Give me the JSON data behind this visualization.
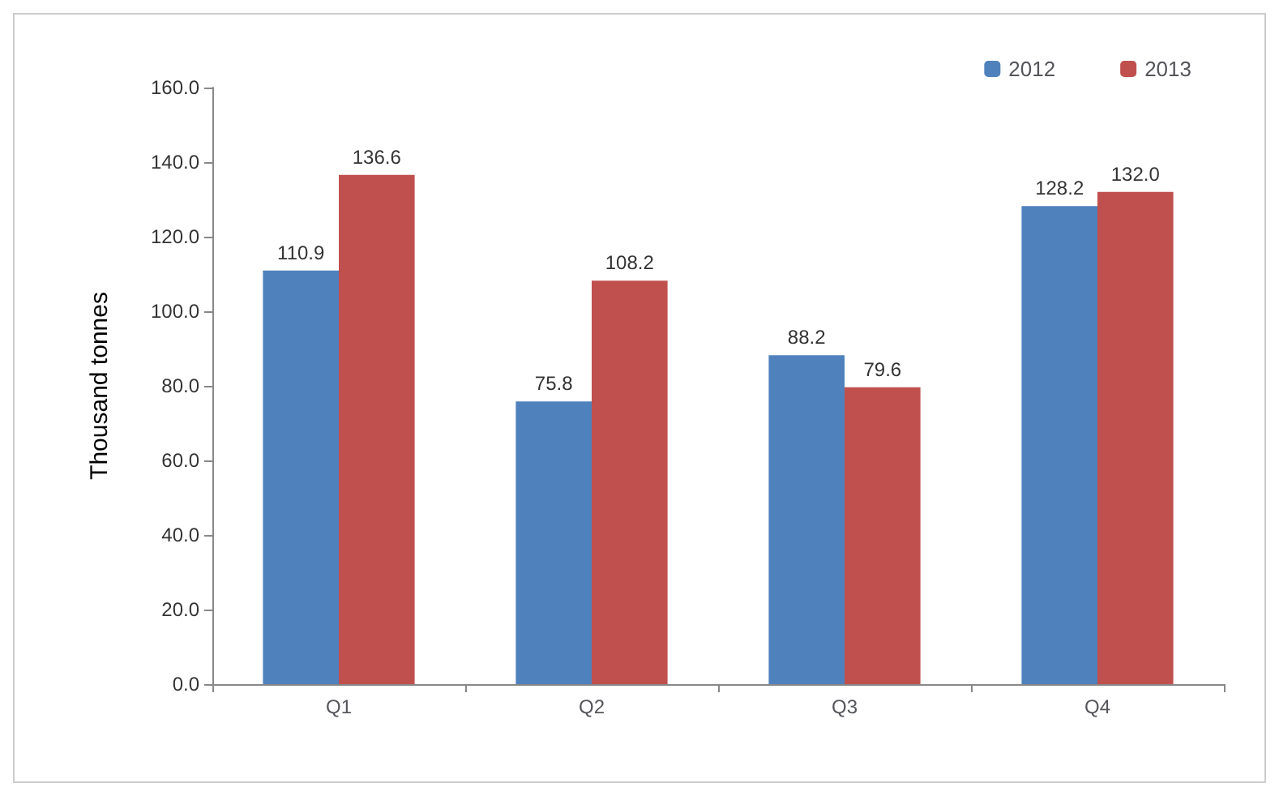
{
  "chart_data": {
    "type": "bar",
    "ylabel": "Thousand tonnes",
    "categories": [
      "Q1",
      "Q2",
      "Q3",
      "Q4"
    ],
    "series": [
      {
        "name": "2012",
        "color": "#4f81bd",
        "values": [
          110.9,
          75.8,
          88.2,
          128.2
        ],
        "value_labels": [
          "110.9",
          "75.8",
          "88.2",
          "128.2"
        ]
      },
      {
        "name": "2013",
        "color": "#c0504d",
        "values": [
          136.6,
          108.2,
          79.6,
          132.0
        ],
        "value_labels": [
          "136.6",
          "108.2",
          "79.6",
          "132.0"
        ]
      }
    ],
    "ylim": [
      0,
      160
    ],
    "yticks": [
      {
        "value": 0,
        "label": "0.0"
      },
      {
        "value": 20,
        "label": "20.0"
      },
      {
        "value": 40,
        "label": "40.0"
      },
      {
        "value": 60,
        "label": "60.0"
      },
      {
        "value": 80,
        "label": "80.0"
      },
      {
        "value": 100,
        "label": "100.0"
      },
      {
        "value": 120,
        "label": "120.0"
      },
      {
        "value": 140,
        "label": "140.0"
      },
      {
        "value": 160,
        "label": "160.0"
      }
    ],
    "grid": false,
    "legend": "top right"
  }
}
